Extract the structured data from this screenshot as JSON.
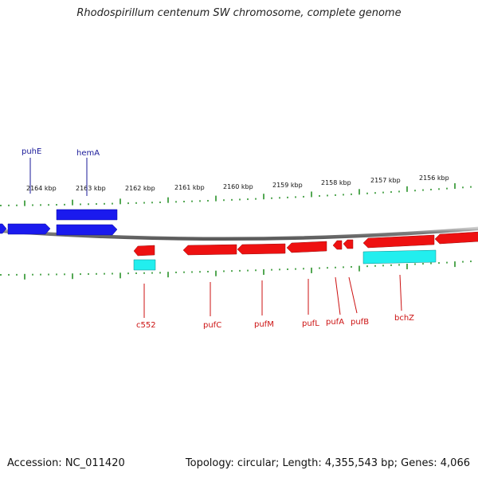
{
  "title": "Rhodospirillum centenum SW chromosome, complete genome",
  "footer": {
    "accession": "Accession: NC_011420",
    "summary": "Topology: circular; Length: 4,355,543 bp; Genes: 4,066"
  },
  "colors": {
    "forward_gene": "#1a1aee",
    "reverse_gene": "#ee1111",
    "rna_feature": "#22eeee",
    "tick": "#1a8a1a",
    "backbone": "#808080",
    "forward_label": "#1a1a99",
    "reverse_label": "#cc1111"
  },
  "scale": {
    "unit": "kbp",
    "labels": [
      "2164 kbp",
      "2163 kbp",
      "2162 kbp",
      "2161 kbp",
      "2160 kbp",
      "2159 kbp",
      "2158 kbp",
      "2157 kbp",
      "2156 kbp"
    ]
  },
  "gene_labels": {
    "forward": [
      "puhE",
      "hemA"
    ],
    "reverse": [
      "c552",
      "pufC",
      "pufM",
      "pufL",
      "pufA",
      "pufB",
      "bchZ"
    ]
  }
}
